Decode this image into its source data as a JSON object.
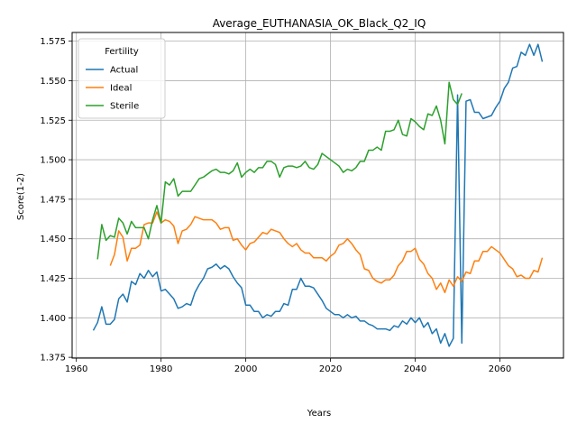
{
  "chart_data": {
    "type": "line",
    "title": "Average_EUTHANASIA_OK_Black_Q2_IQ",
    "xlabel": "Years",
    "ylabel": "Score(1-2)",
    "xlim": [
      1959,
      2075
    ],
    "ylim": [
      1.3745,
      1.5805
    ],
    "xticks": [
      1960,
      1980,
      2000,
      2020,
      2040,
      2060
    ],
    "xtick_labels": [
      "1960",
      "1980",
      "2000",
      "2020",
      "2040",
      "2060"
    ],
    "yticks": [
      1.375,
      1.4,
      1.425,
      1.45,
      1.475,
      1.5,
      1.525,
      1.55,
      1.575
    ],
    "ytick_labels": [
      "1.375",
      "1.400",
      "1.425",
      "1.450",
      "1.475",
      "1.500",
      "1.525",
      "1.550",
      "1.575"
    ],
    "grid": true,
    "legend": {
      "title": "Fertility",
      "position": "top-left"
    },
    "series": [
      {
        "name": "Actual",
        "color": "#1f77b4",
        "x": [
          1964,
          1965,
          1966,
          1967,
          1968,
          1969,
          1970,
          1971,
          1972,
          1973,
          1974,
          1975,
          1976,
          1977,
          1978,
          1979,
          1980,
          1981,
          1982,
          1983,
          1984,
          1985,
          1986,
          1987,
          1988,
          1989,
          1990,
          1991,
          1992,
          1993,
          1994,
          1995,
          1996,
          1997,
          1998,
          1999,
          2000,
          2001,
          2002,
          2003,
          2004,
          2005,
          2006,
          2007,
          2008,
          2009,
          2010,
          2011,
          2012,
          2013,
          2014,
          2015,
          2016,
          2017,
          2018,
          2019,
          2020,
          2021,
          2022,
          2023,
          2024,
          2025,
          2026,
          2027,
          2028,
          2029,
          2030,
          2031,
          2032,
          2033,
          2034,
          2035,
          2036,
          2037,
          2038,
          2039,
          2040,
          2041,
          2042,
          2043,
          2044,
          2045,
          2046,
          2047,
          2048,
          2049,
          2050,
          2051,
          2052,
          2053,
          2054,
          2055,
          2056,
          2057,
          2058,
          2059,
          2060,
          2061,
          2062,
          2063,
          2064,
          2065,
          2066,
          2067,
          2068,
          2069,
          2070
        ],
        "y": [
          1.392,
          1.397,
          1.407,
          1.396,
          1.396,
          1.399,
          1.412,
          1.415,
          1.41,
          1.423,
          1.421,
          1.428,
          1.425,
          1.43,
          1.426,
          1.429,
          1.417,
          1.418,
          1.415,
          1.412,
          1.406,
          1.407,
          1.409,
          1.408,
          1.416,
          1.421,
          1.425,
          1.431,
          1.432,
          1.434,
          1.431,
          1.433,
          1.431,
          1.426,
          1.422,
          1.419,
          1.408,
          1.408,
          1.404,
          1.404,
          1.4,
          1.402,
          1.401,
          1.404,
          1.404,
          1.409,
          1.408,
          1.418,
          1.418,
          1.425,
          1.42,
          1.42,
          1.419,
          1.415,
          1.411,
          1.406,
          1.404,
          1.402,
          1.402,
          1.4,
          1.402,
          1.4,
          1.401,
          1.398,
          1.398,
          1.396,
          1.395,
          1.393,
          1.393,
          1.393,
          1.392,
          1.395,
          1.394,
          1.398,
          1.396,
          1.4,
          1.397,
          1.4,
          1.394,
          1.397,
          1.39,
          1.393,
          1.384,
          1.39,
          1.382,
          1.387,
          1.541,
          1.384,
          1.537,
          1.538,
          1.53,
          1.53,
          1.526,
          1.527,
          1.528,
          1.533,
          1.537,
          1.545,
          1.549,
          1.558,
          1.559,
          1.568,
          1.566,
          1.573,
          1.566,
          1.573,
          1.562
        ]
      },
      {
        "name": "Ideal",
        "color": "#ff7f0e",
        "x": [
          1968,
          1969,
          1970,
          1971,
          1972,
          1973,
          1974,
          1975,
          1976,
          1977,
          1978,
          1979,
          1980,
          1981,
          1982,
          1983,
          1984,
          1985,
          1986,
          1987,
          1988,
          1989,
          1990,
          1991,
          1992,
          1993,
          1994,
          1995,
          1996,
          1997,
          1998,
          1999,
          2000,
          2001,
          2002,
          2003,
          2004,
          2005,
          2006,
          2007,
          2008,
          2009,
          2010,
          2011,
          2012,
          2013,
          2014,
          2015,
          2016,
          2017,
          2018,
          2019,
          2020,
          2021,
          2022,
          2023,
          2024,
          2025,
          2026,
          2027,
          2028,
          2029,
          2030,
          2031,
          2032,
          2033,
          2034,
          2035,
          2036,
          2037,
          2038,
          2039,
          2040,
          2041,
          2042,
          2043,
          2044,
          2045,
          2046,
          2047,
          2048,
          2049,
          2050,
          2051,
          2052,
          2053,
          2054,
          2055,
          2056,
          2057,
          2058,
          2059,
          2060,
          2061,
          2062,
          2063,
          2064,
          2065,
          2066,
          2067,
          2068,
          2069,
          2070
        ],
        "y": [
          1.433,
          1.44,
          1.455,
          1.451,
          1.436,
          1.444,
          1.444,
          1.446,
          1.459,
          1.46,
          1.46,
          1.467,
          1.46,
          1.462,
          1.461,
          1.458,
          1.447,
          1.455,
          1.456,
          1.459,
          1.464,
          1.463,
          1.462,
          1.462,
          1.462,
          1.46,
          1.456,
          1.457,
          1.457,
          1.449,
          1.45,
          1.446,
          1.443,
          1.447,
          1.448,
          1.451,
          1.454,
          1.453,
          1.456,
          1.455,
          1.454,
          1.45,
          1.447,
          1.445,
          1.447,
          1.443,
          1.441,
          1.441,
          1.438,
          1.438,
          1.438,
          1.436,
          1.439,
          1.441,
          1.446,
          1.447,
          1.45,
          1.447,
          1.443,
          1.44,
          1.431,
          1.43,
          1.425,
          1.423,
          1.422,
          1.424,
          1.424,
          1.427,
          1.433,
          1.436,
          1.442,
          1.442,
          1.444,
          1.437,
          1.434,
          1.428,
          1.425,
          1.418,
          1.422,
          1.416,
          1.424,
          1.42,
          1.426,
          1.423,
          1.429,
          1.428,
          1.436,
          1.436,
          1.442,
          1.442,
          1.445,
          1.443,
          1.441,
          1.437,
          1.433,
          1.431,
          1.426,
          1.427,
          1.425,
          1.425,
          1.43,
          1.429,
          1.438
        ]
      },
      {
        "name": "Sterile",
        "color": "#2ca02c",
        "x": [
          1965,
          1966,
          1967,
          1968,
          1969,
          1970,
          1971,
          1972,
          1973,
          1974,
          1975,
          1976,
          1977,
          1978,
          1979,
          1980,
          1981,
          1982,
          1983,
          1984,
          1985,
          1986,
          1987,
          1988,
          1989,
          1990,
          1991,
          1992,
          1993,
          1994,
          1995,
          1996,
          1997,
          1998,
          1999,
          2000,
          2001,
          2002,
          2003,
          2004,
          2005,
          2006,
          2007,
          2008,
          2009,
          2010,
          2011,
          2012,
          2013,
          2014,
          2015,
          2016,
          2017,
          2018,
          2019,
          2020,
          2021,
          2022,
          2023,
          2024,
          2025,
          2026,
          2027,
          2028,
          2029,
          2030,
          2031,
          2032,
          2033,
          2034,
          2035,
          2036,
          2037,
          2038,
          2039,
          2040,
          2041,
          2042,
          2043,
          2044,
          2045,
          2046,
          2047,
          2048,
          2049,
          2050,
          2051
        ],
        "y": [
          1.437,
          1.459,
          1.449,
          1.452,
          1.451,
          1.463,
          1.46,
          1.453,
          1.461,
          1.457,
          1.457,
          1.457,
          1.45,
          1.462,
          1.471,
          1.46,
          1.486,
          1.484,
          1.488,
          1.477,
          1.48,
          1.48,
          1.48,
          1.484,
          1.488,
          1.489,
          1.491,
          1.493,
          1.494,
          1.492,
          1.492,
          1.491,
          1.493,
          1.498,
          1.489,
          1.492,
          1.494,
          1.492,
          1.495,
          1.495,
          1.499,
          1.499,
          1.497,
          1.489,
          1.495,
          1.496,
          1.496,
          1.495,
          1.496,
          1.499,
          1.495,
          1.494,
          1.497,
          1.504,
          1.502,
          1.5,
          1.498,
          1.496,
          1.492,
          1.494,
          1.493,
          1.495,
          1.499,
          1.499,
          1.506,
          1.506,
          1.508,
          1.506,
          1.518,
          1.518,
          1.519,
          1.525,
          1.516,
          1.515,
          1.526,
          1.524,
          1.521,
          1.519,
          1.529,
          1.528,
          1.534,
          1.525,
          1.51,
          1.549,
          1.538,
          1.535,
          1.542
        ]
      }
    ]
  }
}
